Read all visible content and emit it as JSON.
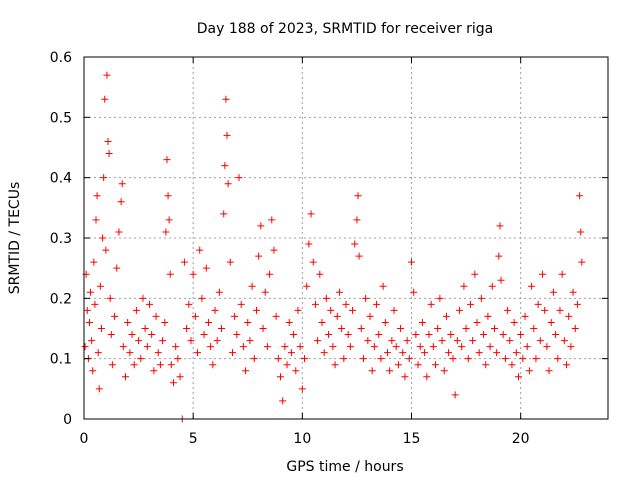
{
  "chart_data": {
    "type": "scatter",
    "title": "Day 188 of 2023, SRMTID for receiver riga",
    "xlabel": "GPS time / hours",
    "ylabel": "SRMTID / TECUs",
    "xlim": [
      0,
      24
    ],
    "ylim": [
      0,
      0.6
    ],
    "x_ticks": [
      0,
      5,
      10,
      15,
      20
    ],
    "x_tick_labels": [
      "0",
      "5",
      "10",
      "15",
      "20"
    ],
    "y_ticks": [
      0,
      0.1,
      0.2,
      0.3,
      0.4,
      0.5,
      0.6
    ],
    "y_tick_labels": [
      "0",
      "0.1",
      "0.2",
      "0.3",
      "0.4",
      "0.5",
      "0.6"
    ],
    "grid": true,
    "marker": "+",
    "series_color": "#ff0000",
    "series": [
      {
        "name": "SRMTID",
        "points": [
          [
            0.05,
            0.12
          ],
          [
            0.1,
            0.24
          ],
          [
            0.15,
            0.18
          ],
          [
            0.2,
            0.1
          ],
          [
            0.25,
            0.16
          ],
          [
            0.3,
            0.21
          ],
          [
            0.35,
            0.13
          ],
          [
            0.4,
            0.08
          ],
          [
            0.45,
            0.26
          ],
          [
            0.5,
            0.19
          ],
          [
            0.55,
            0.33
          ],
          [
            0.6,
            0.37
          ],
          [
            0.65,
            0.11
          ],
          [
            0.7,
            0.05
          ],
          [
            0.75,
            0.22
          ],
          [
            0.8,
            0.15
          ],
          [
            0.85,
            0.3
          ],
          [
            0.9,
            0.4
          ],
          [
            0.95,
            0.53
          ],
          [
            1.0,
            0.28
          ],
          [
            1.05,
            0.57
          ],
          [
            1.1,
            0.46
          ],
          [
            1.15,
            0.44
          ],
          [
            1.2,
            0.2
          ],
          [
            1.25,
            0.14
          ],
          [
            1.3,
            0.09
          ],
          [
            1.4,
            0.17
          ],
          [
            1.5,
            0.25
          ],
          [
            1.6,
            0.31
          ],
          [
            1.7,
            0.36
          ],
          [
            1.75,
            0.39
          ],
          [
            1.8,
            0.12
          ],
          [
            1.9,
            0.07
          ],
          [
            2.0,
            0.16
          ],
          [
            2.1,
            0.11
          ],
          [
            2.2,
            0.14
          ],
          [
            2.3,
            0.09
          ],
          [
            2.4,
            0.18
          ],
          [
            2.5,
            0.13
          ],
          [
            2.6,
            0.1
          ],
          [
            2.7,
            0.2
          ],
          [
            2.8,
            0.15
          ],
          [
            2.9,
            0.12
          ],
          [
            3.0,
            0.19
          ],
          [
            3.1,
            0.14
          ],
          [
            3.2,
            0.08
          ],
          [
            3.3,
            0.17
          ],
          [
            3.4,
            0.11
          ],
          [
            3.5,
            0.09
          ],
          [
            3.6,
            0.13
          ],
          [
            3.7,
            0.16
          ],
          [
            3.75,
            0.31
          ],
          [
            3.8,
            0.43
          ],
          [
            3.85,
            0.37
          ],
          [
            3.9,
            0.33
          ],
          [
            3.95,
            0.24
          ],
          [
            4.0,
            0.09
          ],
          [
            4.1,
            0.06
          ],
          [
            4.2,
            0.12
          ],
          [
            4.3,
            0.1
          ],
          [
            4.4,
            0.07
          ],
          [
            4.5,
            0.0
          ],
          [
            4.6,
            0.26
          ],
          [
            4.7,
            0.15
          ],
          [
            4.8,
            0.19
          ],
          [
            4.9,
            0.13
          ],
          [
            5.0,
            0.24
          ],
          [
            5.1,
            0.17
          ],
          [
            5.2,
            0.11
          ],
          [
            5.3,
            0.28
          ],
          [
            5.4,
            0.2
          ],
          [
            5.5,
            0.14
          ],
          [
            5.6,
            0.25
          ],
          [
            5.7,
            0.16
          ],
          [
            5.8,
            0.12
          ],
          [
            5.9,
            0.09
          ],
          [
            6.0,
            0.18
          ],
          [
            6.1,
            0.13
          ],
          [
            6.2,
            0.21
          ],
          [
            6.3,
            0.15
          ],
          [
            6.4,
            0.34
          ],
          [
            6.45,
            0.42
          ],
          [
            6.5,
            0.53
          ],
          [
            6.55,
            0.47
          ],
          [
            6.6,
            0.39
          ],
          [
            6.7,
            0.26
          ],
          [
            6.8,
            0.11
          ],
          [
            6.9,
            0.17
          ],
          [
            7.0,
            0.14
          ],
          [
            7.1,
            0.4
          ],
          [
            7.2,
            0.19
          ],
          [
            7.3,
            0.12
          ],
          [
            7.4,
            0.08
          ],
          [
            7.5,
            0.16
          ],
          [
            7.6,
            0.13
          ],
          [
            7.7,
            0.22
          ],
          [
            7.8,
            0.1
          ],
          [
            7.9,
            0.18
          ],
          [
            8.0,
            0.27
          ],
          [
            8.1,
            0.32
          ],
          [
            8.2,
            0.15
          ],
          [
            8.3,
            0.21
          ],
          [
            8.4,
            0.12
          ],
          [
            8.5,
            0.24
          ],
          [
            8.6,
            0.33
          ],
          [
            8.7,
            0.28
          ],
          [
            8.8,
            0.17
          ],
          [
            8.9,
            0.1
          ],
          [
            9.0,
            0.07
          ],
          [
            9.1,
            0.03
          ],
          [
            9.2,
            0.12
          ],
          [
            9.3,
            0.09
          ],
          [
            9.4,
            0.16
          ],
          [
            9.5,
            0.11
          ],
          [
            9.6,
            0.14
          ],
          [
            9.7,
            0.08
          ],
          [
            9.8,
            0.18
          ],
          [
            9.9,
            0.12
          ],
          [
            10.0,
            0.05
          ],
          [
            10.1,
            0.1
          ],
          [
            10.2,
            0.22
          ],
          [
            10.3,
            0.29
          ],
          [
            10.4,
            0.34
          ],
          [
            10.5,
            0.26
          ],
          [
            10.6,
            0.19
          ],
          [
            10.7,
            0.13
          ],
          [
            10.8,
            0.24
          ],
          [
            10.9,
            0.16
          ],
          [
            11.0,
            0.11
          ],
          [
            11.1,
            0.2
          ],
          [
            11.2,
            0.14
          ],
          [
            11.3,
            0.18
          ],
          [
            11.4,
            0.12
          ],
          [
            11.5,
            0.09
          ],
          [
            11.6,
            0.17
          ],
          [
            11.7,
            0.21
          ],
          [
            11.8,
            0.15
          ],
          [
            11.9,
            0.1
          ],
          [
            12.0,
            0.19
          ],
          [
            12.1,
            0.14
          ],
          [
            12.2,
            0.12
          ],
          [
            12.3,
            0.18
          ],
          [
            12.4,
            0.29
          ],
          [
            12.5,
            0.33
          ],
          [
            12.55,
            0.37
          ],
          [
            12.6,
            0.27
          ],
          [
            12.7,
            0.15
          ],
          [
            12.8,
            0.1
          ],
          [
            12.9,
            0.2
          ],
          [
            13.0,
            0.13
          ],
          [
            13.1,
            0.17
          ],
          [
            13.2,
            0.08
          ],
          [
            13.3,
            0.12
          ],
          [
            13.4,
            0.19
          ],
          [
            13.5,
            0.14
          ],
          [
            13.6,
            0.1
          ],
          [
            13.7,
            0.22
          ],
          [
            13.8,
            0.16
          ],
          [
            13.9,
            0.11
          ],
          [
            14.0,
            0.08
          ],
          [
            14.1,
            0.13
          ],
          [
            14.2,
            0.18
          ],
          [
            14.3,
            0.12
          ],
          [
            14.4,
            0.09
          ],
          [
            14.5,
            0.15
          ],
          [
            14.6,
            0.11
          ],
          [
            14.7,
            0.07
          ],
          [
            14.8,
            0.13
          ],
          [
            14.9,
            0.1
          ],
          [
            15.0,
            0.26
          ],
          [
            15.1,
            0.21
          ],
          [
            15.2,
            0.14
          ],
          [
            15.3,
            0.09
          ],
          [
            15.4,
            0.12
          ],
          [
            15.5,
            0.16
          ],
          [
            15.6,
            0.11
          ],
          [
            15.7,
            0.07
          ],
          [
            15.8,
            0.14
          ],
          [
            15.9,
            0.19
          ],
          [
            16.0,
            0.12
          ],
          [
            16.1,
            0.09
          ],
          [
            16.2,
            0.15
          ],
          [
            16.3,
            0.2
          ],
          [
            16.4,
            0.13
          ],
          [
            16.5,
            0.08
          ],
          [
            16.6,
            0.17
          ],
          [
            16.7,
            0.11
          ],
          [
            16.8,
            0.14
          ],
          [
            16.9,
            0.1
          ],
          [
            17.0,
            0.04
          ],
          [
            17.1,
            0.13
          ],
          [
            17.2,
            0.18
          ],
          [
            17.3,
            0.12
          ],
          [
            17.4,
            0.22
          ],
          [
            17.5,
            0.15
          ],
          [
            17.6,
            0.1
          ],
          [
            17.7,
            0.19
          ],
          [
            17.8,
            0.13
          ],
          [
            17.9,
            0.24
          ],
          [
            18.0,
            0.16
          ],
          [
            18.1,
            0.11
          ],
          [
            18.2,
            0.2
          ],
          [
            18.3,
            0.14
          ],
          [
            18.4,
            0.09
          ],
          [
            18.5,
            0.17
          ],
          [
            18.6,
            0.12
          ],
          [
            18.7,
            0.22
          ],
          [
            18.8,
            0.15
          ],
          [
            18.9,
            0.11
          ],
          [
            19.0,
            0.27
          ],
          [
            19.05,
            0.32
          ],
          [
            19.1,
            0.23
          ],
          [
            19.2,
            0.14
          ],
          [
            19.3,
            0.1
          ],
          [
            19.4,
            0.18
          ],
          [
            19.5,
            0.13
          ],
          [
            19.6,
            0.09
          ],
          [
            19.7,
            0.16
          ],
          [
            19.8,
            0.11
          ],
          [
            19.9,
            0.07
          ],
          [
            20.0,
            0.14
          ],
          [
            20.1,
            0.1
          ],
          [
            20.2,
            0.17
          ],
          [
            20.3,
            0.12
          ],
          [
            20.4,
            0.08
          ],
          [
            20.5,
            0.22
          ],
          [
            20.6,
            0.15
          ],
          [
            20.7,
            0.1
          ],
          [
            20.8,
            0.19
          ],
          [
            20.9,
            0.13
          ],
          [
            21.0,
            0.24
          ],
          [
            21.1,
            0.18
          ],
          [
            21.2,
            0.12
          ],
          [
            21.3,
            0.08
          ],
          [
            21.4,
            0.16
          ],
          [
            21.5,
            0.21
          ],
          [
            21.6,
            0.14
          ],
          [
            21.7,
            0.1
          ],
          [
            21.8,
            0.18
          ],
          [
            21.9,
            0.24
          ],
          [
            22.0,
            0.13
          ],
          [
            22.1,
            0.09
          ],
          [
            22.2,
            0.17
          ],
          [
            22.3,
            0.12
          ],
          [
            22.4,
            0.21
          ],
          [
            22.5,
            0.15
          ],
          [
            22.6,
            0.19
          ],
          [
            22.7,
            0.37
          ],
          [
            22.75,
            0.31
          ],
          [
            22.8,
            0.26
          ]
        ]
      }
    ]
  }
}
